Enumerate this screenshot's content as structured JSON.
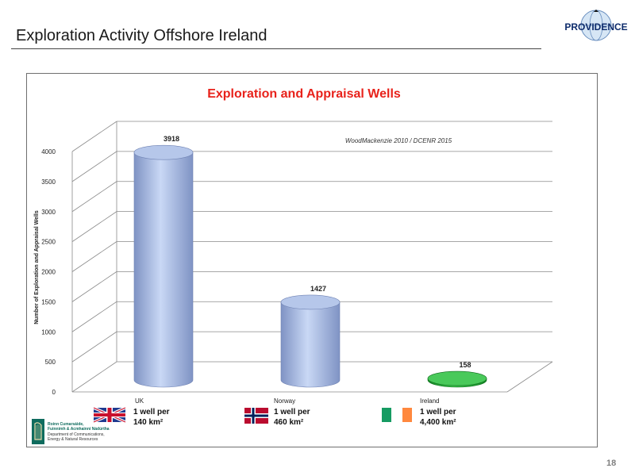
{
  "slide": {
    "title": "Exploration Activity Offshore Ireland",
    "page_number": "18"
  },
  "logo": {
    "text": "PROVIDENCE",
    "brand_color": "#0d2b6b"
  },
  "chart_data": {
    "type": "bar",
    "title": "Exploration and Appraisal Wells",
    "title_color": "#e8221b",
    "source_note": "WoodMackenzie 2010 / DCENR 2015",
    "ylabel": "Number of Exploration and Appraisal Wells",
    "xlabel": "",
    "ylim": [
      0,
      4000
    ],
    "yticks": [
      0,
      500,
      1000,
      1500,
      2000,
      2500,
      3000,
      3500,
      4000
    ],
    "grid": true,
    "categories": [
      "UK",
      "Norway",
      "Ireland"
    ],
    "values": [
      3918,
      1427,
      158
    ],
    "data_labels": [
      "3918",
      "1427",
      "158"
    ],
    "bar_colors": [
      "#a9bde6",
      "#a9bde6",
      "#1f9e34"
    ],
    "density": [
      {
        "country": "UK",
        "line1": "1 well per",
        "line2": "140 km²",
        "flag": "uk-flag-icon"
      },
      {
        "country": "Norway",
        "line1": "1 well per",
        "line2": "460 km²",
        "flag": "norway-flag-icon"
      },
      {
        "country": "Ireland",
        "line1": "1 well per",
        "line2": "4,400 km²",
        "flag": "ireland-flag-icon"
      }
    ]
  },
  "department": {
    "line1": "Roinn Cumarsáide,",
    "line2": "Fuinnimh & Acmhainní Nádúrtha",
    "line3": "Department of Communications,",
    "line4": "Energy & Natural Resources"
  }
}
